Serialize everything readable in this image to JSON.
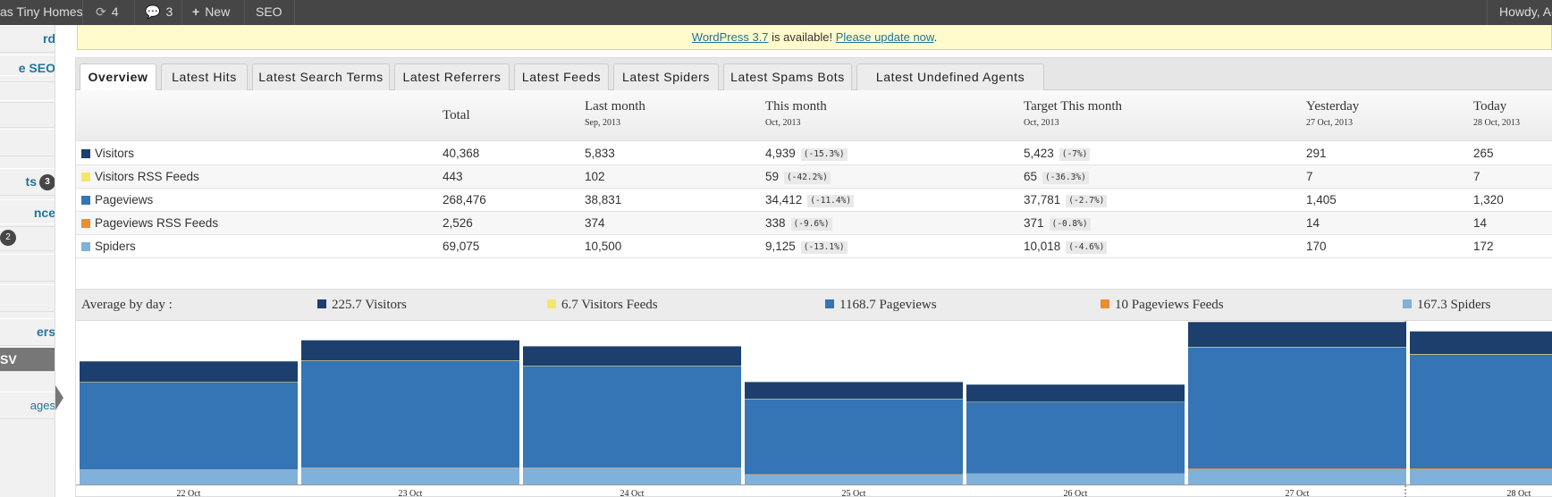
{
  "admin_bar": {
    "site_name": "as Tiny Homes",
    "updates_count": "4",
    "comments_count": "3",
    "new_label": "New",
    "seo_label": "SEO",
    "howdy": "Howdy, Ad"
  },
  "sidebar": {
    "items": [
      {
        "label": "rd",
        "style": "blue",
        "badge": ""
      },
      {
        "label": "e SEO",
        "style": "blue",
        "badge": ""
      },
      {
        "label": "",
        "style": "plain",
        "badge": ""
      },
      {
        "label": "",
        "style": "plain",
        "badge": ""
      },
      {
        "label": "",
        "style": "plain",
        "badge": ""
      },
      {
        "label": "ts",
        "style": "blue",
        "badge": "3"
      },
      {
        "label": "nce",
        "style": "blue",
        "badge": ""
      },
      {
        "label": "",
        "style": "plain",
        "badge": "2"
      },
      {
        "label": "",
        "style": "plain",
        "badge": ""
      },
      {
        "label": "",
        "style": "plain",
        "badge": ""
      },
      {
        "label": "ers",
        "style": "blue",
        "badge": ""
      },
      {
        "label": "SV",
        "style": "current",
        "badge": ""
      },
      {
        "label": "ages",
        "style": "link",
        "badge": ""
      }
    ]
  },
  "nag": {
    "link1": "WordPress 3.7",
    "middle": " is available! ",
    "link2": "Please update now",
    "end": "."
  },
  "tabs": [
    {
      "label": "Overview",
      "active": true
    },
    {
      "label": "Latest Hits",
      "active": false
    },
    {
      "label": "Latest Search Terms",
      "active": false
    },
    {
      "label": "Latest Referrers",
      "active": false
    },
    {
      "label": "Latest Feeds",
      "active": false
    },
    {
      "label": "Latest Spiders",
      "active": false
    },
    {
      "label": "Latest Spams Bots",
      "active": false
    },
    {
      "label": "Latest Undefined Agents",
      "active": false
    }
  ],
  "table": {
    "headers": [
      {
        "label": "Total",
        "sub": ""
      },
      {
        "label": "Last month",
        "sub": "Sep, 2013"
      },
      {
        "label": "This month",
        "sub": "Oct, 2013"
      },
      {
        "label": "Target This month",
        "sub": "Oct, 2013"
      },
      {
        "label": "Yesterday",
        "sub": "27 Oct, 2013"
      },
      {
        "label": "Today",
        "sub": "28 Oct, 2013"
      }
    ],
    "rows": [
      {
        "name": "Visitors",
        "color": "#1c3f6e",
        "total": "40,368",
        "last_month": "5,833",
        "this_month": "4,939",
        "this_pct": "(-15.3%)",
        "target": "5,423",
        "target_pct": "(-7%)",
        "yesterday": "291",
        "today": "265"
      },
      {
        "name": "Visitors RSS Feeds",
        "color": "#f5e66b",
        "total": "443",
        "last_month": "102",
        "this_month": "59",
        "this_pct": "(-42.2%)",
        "target": "65",
        "target_pct": "(-36.3%)",
        "yesterday": "7",
        "today": "7"
      },
      {
        "name": "Pageviews",
        "color": "#3574b5",
        "total": "268,476",
        "last_month": "38,831",
        "this_month": "34,412",
        "this_pct": "(-11.4%)",
        "target": "37,781",
        "target_pct": "(-2.7%)",
        "yesterday": "1,405",
        "today": "1,320"
      },
      {
        "name": "Pageviews RSS Feeds",
        "color": "#ee8c30",
        "total": "2,526",
        "last_month": "374",
        "this_month": "338",
        "this_pct": "(-9.6%)",
        "target": "371",
        "target_pct": "(-0.8%)",
        "yesterday": "14",
        "today": "14"
      },
      {
        "name": "Spiders",
        "color": "#7fb1da",
        "total": "69,075",
        "last_month": "10,500",
        "this_month": "9,125",
        "this_pct": "(-13.1%)",
        "target": "10,018",
        "target_pct": "(-4.6%)",
        "yesterday": "170",
        "today": "172"
      }
    ]
  },
  "average": {
    "label": "Average by day :",
    "items": [
      {
        "text": "225.7 Visitors",
        "color": "#1c3f6e"
      },
      {
        "text": "6.7 Visitors Feeds",
        "color": "#f5e66b"
      },
      {
        "text": "1168.7 Pageviews",
        "color": "#3574b5"
      },
      {
        "text": "10 Pageviews Feeds",
        "color": "#ee8c30"
      },
      {
        "text": "167.3 Spiders",
        "color": "#7fb1da"
      }
    ]
  },
  "chart_data": {
    "type": "bar",
    "stacked": true,
    "categories": [
      "22 Oct",
      "23 Oct",
      "24 Oct",
      "25 Oct",
      "26 Oct",
      "27 Oct",
      "28 Oct"
    ],
    "series": [
      {
        "name": "Spiders",
        "color": "#7fb1da",
        "values": [
          170,
          190,
          190,
          115,
          125,
          170,
          172
        ]
      },
      {
        "name": "Pageviews RSS Feeds",
        "color": "#ee8c30",
        "values": [
          5,
          5,
          5,
          5,
          5,
          14,
          14
        ]
      },
      {
        "name": "Pageviews",
        "color": "#3574b5",
        "values": [
          1010,
          1240,
          1180,
          870,
          825,
          1405,
          1320
        ]
      },
      {
        "name": "Visitors RSS Feeds",
        "color": "#f5e66b",
        "values": [
          5,
          5,
          5,
          5,
          5,
          7,
          7
        ]
      },
      {
        "name": "Visitors",
        "color": "#1c3f6e",
        "values": [
          240,
          235,
          225,
          195,
          200,
          291,
          265
        ]
      }
    ],
    "ylim": [
      0,
      1900
    ]
  }
}
